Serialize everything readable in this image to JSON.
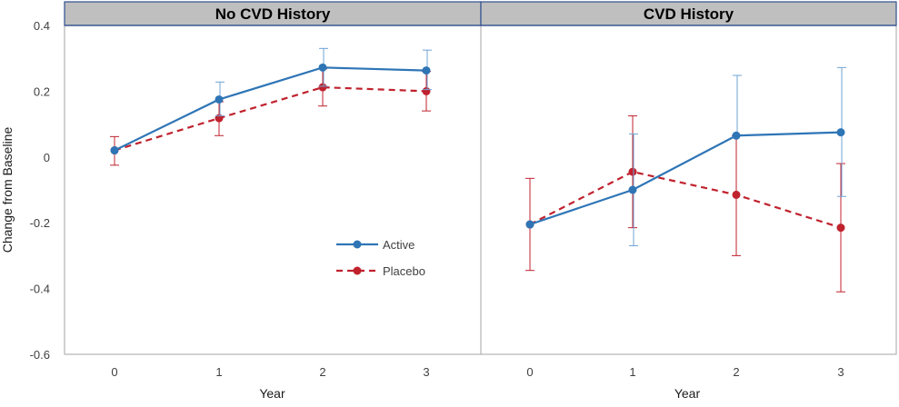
{
  "chart_data": {
    "type": "line",
    "ylabel": "Change from Baseline",
    "xlabel": "Year",
    "ylim": [
      -0.6,
      0.4
    ],
    "yticks": [
      "0.4",
      "0.2",
      "0",
      "-0.2",
      "-0.4",
      "-0.6"
    ],
    "x": [
      0,
      1,
      2,
      3
    ],
    "xtick_labels": [
      "0",
      "1",
      "2",
      "3"
    ],
    "legend_placement": "inside left panel, lower-right",
    "colors": {
      "active": "#2e75b6",
      "placebo": "#c0222e",
      "panel_header_bg": "#bfbfbf",
      "panel_border": "#2f4f8f"
    },
    "panels": [
      {
        "title": "No CVD History",
        "series": [
          {
            "name": "Active",
            "values": [
              0.02,
              0.175,
              0.272,
              0.263
            ],
            "err_low": [
              0.02,
              0.125,
              0.215,
              0.205
            ],
            "err_high": [
              0.02,
              0.228,
              0.33,
              0.325
            ]
          },
          {
            "name": "Placebo",
            "values": [
              0.02,
              0.118,
              0.212,
              0.2
            ],
            "err_low": [
              -0.025,
              0.065,
              0.155,
              0.14
            ],
            "err_high": [
              0.062,
              0.168,
              0.268,
              0.26
            ]
          }
        ]
      },
      {
        "title": "CVD History",
        "series": [
          {
            "name": "Active",
            "values": [
              -0.205,
              -0.1,
              0.065,
              0.075
            ],
            "err_low": [
              -0.205,
              -0.27,
              0.065,
              -0.12
            ],
            "err_high": [
              -0.205,
              0.07,
              0.248,
              0.272
            ]
          },
          {
            "name": "Placebo",
            "values": [
              -0.205,
              -0.045,
              -0.115,
              -0.215
            ],
            "err_low": [
              -0.345,
              -0.215,
              -0.3,
              -0.41
            ],
            "err_high": [
              -0.065,
              0.125,
              0.065,
              -0.02
            ]
          }
        ]
      }
    ],
    "legend": [
      {
        "name": "Active",
        "style": "solid"
      },
      {
        "name": "Placebo",
        "style": "dashed"
      }
    ]
  }
}
